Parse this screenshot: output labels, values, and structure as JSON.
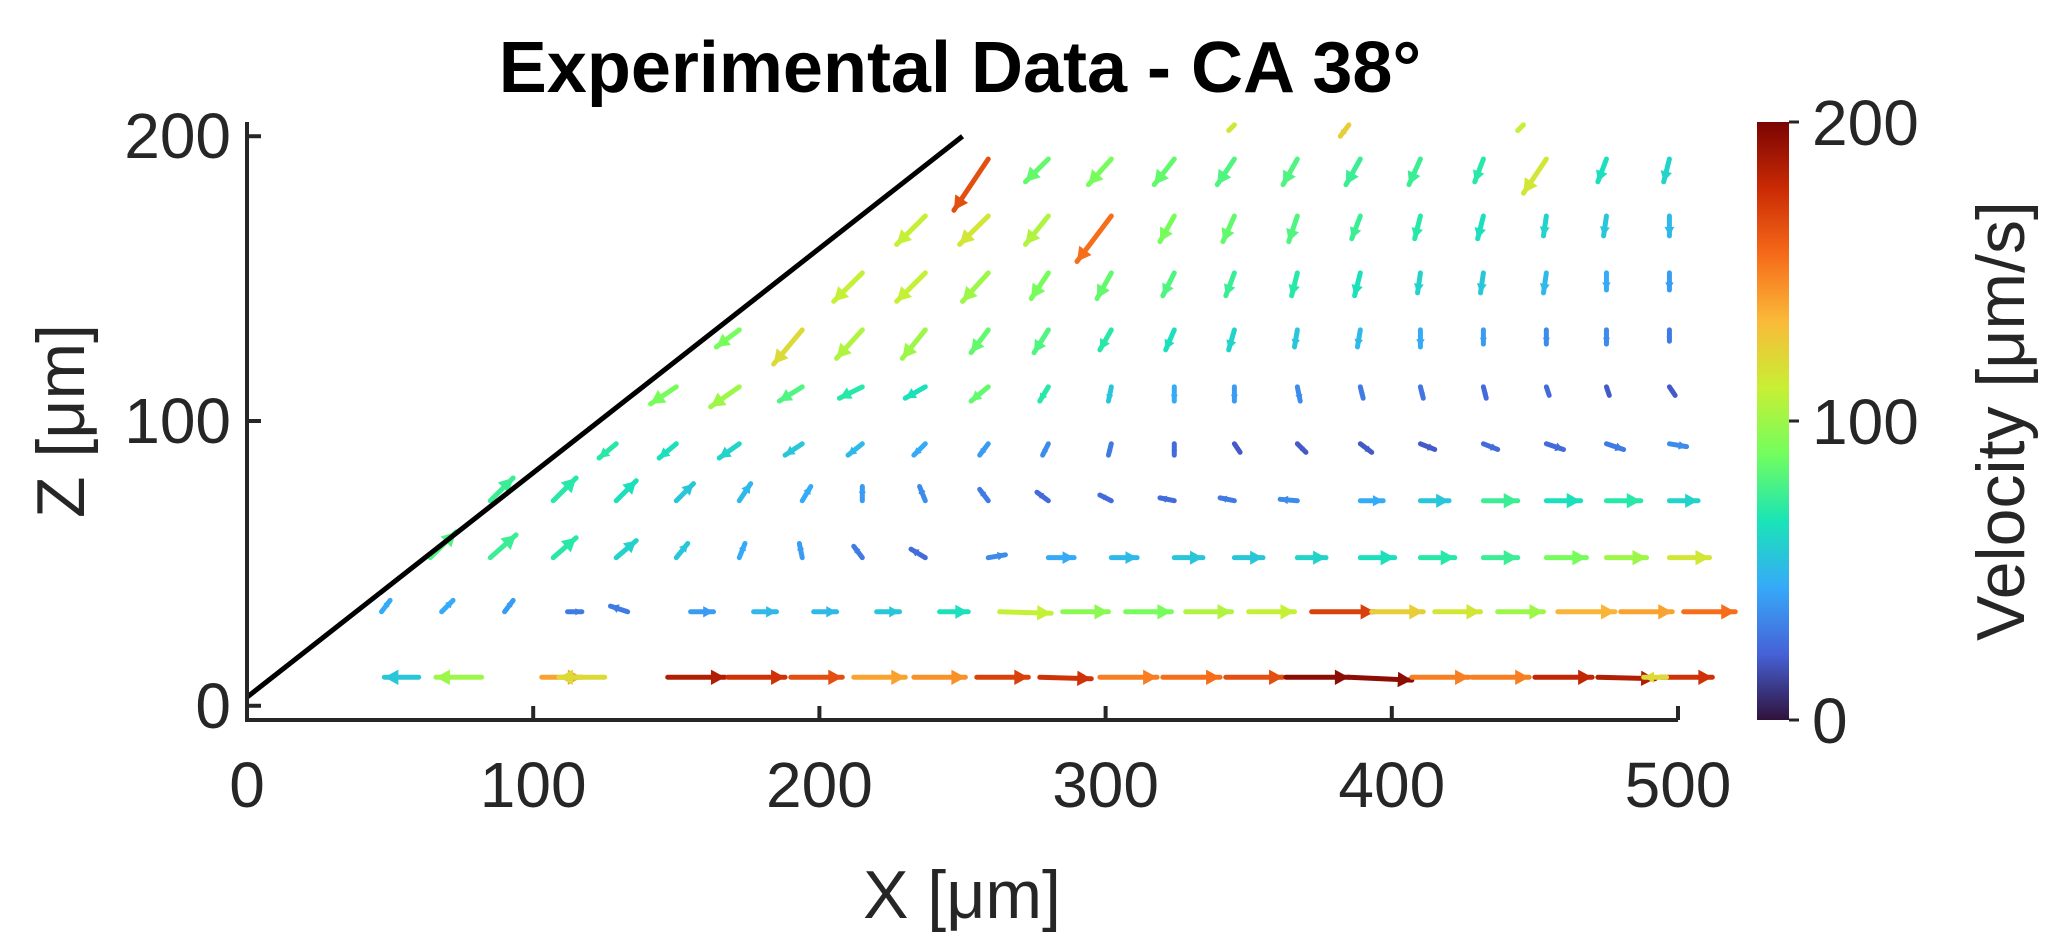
{
  "chart_data": {
    "type": "quiver",
    "title": "Experimental Data - CA 38°",
    "xlabel": "X [μm]",
    "ylabel": "Z [μm]",
    "xlim": [
      0,
      500
    ],
    "ylim": [
      -5,
      205
    ],
    "xticks": [
      "0",
      "100",
      "200",
      "300",
      "400",
      "500"
    ],
    "yticks": [
      "0",
      "100",
      "200"
    ],
    "xtick_values": [
      0,
      100,
      200,
      300,
      400,
      500
    ],
    "ytick_values": [
      0,
      100,
      200
    ],
    "wall_line": {
      "x": [
        0,
        250
      ],
      "z": [
        3,
        200
      ]
    },
    "colorbar": {
      "label": "Velocity [μm/s]",
      "ticks": [
        "0",
        "100",
        "200"
      ],
      "tick_values": [
        0,
        100,
        200
      ],
      "range": [
        0,
        200
      ],
      "colormap": [
        "#30123b",
        "#4662d7",
        "#36aaf9",
        "#1ae4b6",
        "#72fe5e",
        "#c8ef34",
        "#faba39",
        "#f66b19",
        "#ca2a04",
        "#7a0403"
      ]
    },
    "vectors": [
      {
        "x": 60,
        "z": 10,
        "u": -12,
        "v": 0,
        "s": 55
      },
      {
        "x": 82,
        "z": 10,
        "u": -16,
        "v": 0,
        "s": 100
      },
      {
        "x": 103,
        "z": 10,
        "u": 14,
        "v": 0,
        "s": 140
      },
      {
        "x": 125,
        "z": 10,
        "u": -16,
        "v": 0,
        "s": 120
      },
      {
        "x": 147,
        "z": 10,
        "u": 20,
        "v": 0,
        "s": 185
      },
      {
        "x": 168,
        "z": 10,
        "u": 20,
        "v": 0,
        "s": 175
      },
      {
        "x": 190,
        "z": 10,
        "u": 18,
        "v": 0,
        "s": 165
      },
      {
        "x": 212,
        "z": 10,
        "u": 18,
        "v": 0,
        "s": 140
      },
      {
        "x": 233,
        "z": 10,
        "u": 18,
        "v": 0,
        "s": 145
      },
      {
        "x": 255,
        "z": 10,
        "u": 18,
        "v": 0,
        "s": 170
      },
      {
        "x": 277,
        "z": 10,
        "u": 18,
        "v": -0.5,
        "s": 175
      },
      {
        "x": 298,
        "z": 10,
        "u": 20,
        "v": 0,
        "s": 150
      },
      {
        "x": 320,
        "z": 10,
        "u": 20,
        "v": 0,
        "s": 155
      },
      {
        "x": 342,
        "z": 10,
        "u": 20,
        "v": 0,
        "s": 165
      },
      {
        "x": 363,
        "z": 10,
        "u": 22,
        "v": 0,
        "s": 195
      },
      {
        "x": 385,
        "z": 10,
        "u": 22,
        "v": -1,
        "s": 195
      },
      {
        "x": 407,
        "z": 10,
        "u": 20,
        "v": 0,
        "s": 150
      },
      {
        "x": 428,
        "z": 10,
        "u": 20,
        "v": 0,
        "s": 150
      },
      {
        "x": 450,
        "z": 10,
        "u": 20,
        "v": 0,
        "s": 180
      },
      {
        "x": 472,
        "z": 10,
        "u": 20,
        "v": -0.5,
        "s": 185
      },
      {
        "x": 494,
        "z": 10,
        "u": 18,
        "v": 0,
        "s": 175
      },
      {
        "x": 496,
        "z": 10,
        "u": -8,
        "v": 0,
        "s": 120
      },
      {
        "x": 47,
        "z": 33,
        "u": 3,
        "v": 4,
        "s": 45
      },
      {
        "x": 68,
        "z": 33,
        "u": 4,
        "v": 4,
        "s": 45
      },
      {
        "x": 90,
        "z": 33,
        "u": 3,
        "v": 4,
        "s": 40
      },
      {
        "x": 112,
        "z": 33,
        "u": 5,
        "v": 0,
        "s": 30
      },
      {
        "x": 133,
        "z": 33,
        "u": -6,
        "v": 2,
        "s": 30
      },
      {
        "x": 155,
        "z": 33,
        "u": 8,
        "v": 0,
        "s": 40
      },
      {
        "x": 177,
        "z": 33,
        "u": 8,
        "v": 0,
        "s": 50
      },
      {
        "x": 198,
        "z": 33,
        "u": 8,
        "v": 0,
        "s": 50
      },
      {
        "x": 220,
        "z": 33,
        "u": 8,
        "v": 0,
        "s": 55
      },
      {
        "x": 242,
        "z": 33,
        "u": 10,
        "v": 0,
        "s": 65
      },
      {
        "x": 263,
        "z": 33,
        "u": 18,
        "v": -0.5,
        "s": 110
      },
      {
        "x": 285,
        "z": 33,
        "u": 16,
        "v": 0,
        "s": 95
      },
      {
        "x": 307,
        "z": 33,
        "u": 16,
        "v": 0,
        "s": 90
      },
      {
        "x": 328,
        "z": 33,
        "u": 16,
        "v": 0,
        "s": 105
      },
      {
        "x": 350,
        "z": 33,
        "u": 16,
        "v": 0,
        "s": 110
      },
      {
        "x": 372,
        "z": 33,
        "u": 22,
        "v": 0,
        "s": 170
      },
      {
        "x": 393,
        "z": 33,
        "u": 18,
        "v": 0,
        "s": 125
      },
      {
        "x": 415,
        "z": 33,
        "u": 16,
        "v": 0,
        "s": 115
      },
      {
        "x": 437,
        "z": 33,
        "u": 16,
        "v": 0,
        "s": 100
      },
      {
        "x": 458,
        "z": 33,
        "u": 20,
        "v": 0,
        "s": 135
      },
      {
        "x": 480,
        "z": 33,
        "u": 18,
        "v": 0,
        "s": 140
      },
      {
        "x": 502,
        "z": 33,
        "u": 18,
        "v": 0,
        "s": 155
      },
      {
        "x": 64,
        "z": 52,
        "u": 9,
        "v": 9,
        "s": 80
      },
      {
        "x": 85,
        "z": 52,
        "u": 9,
        "v": 8,
        "s": 75
      },
      {
        "x": 107,
        "z": 52,
        "u": 8,
        "v": 7,
        "s": 70
      },
      {
        "x": 129,
        "z": 52,
        "u": 7,
        "v": 6,
        "s": 60
      },
      {
        "x": 150,
        "z": 52,
        "u": 4,
        "v": 5,
        "s": 55
      },
      {
        "x": 172,
        "z": 52,
        "u": 2,
        "v": 5,
        "s": 45
      },
      {
        "x": 194,
        "z": 52,
        "u": -1,
        "v": 5,
        "s": 40
      },
      {
        "x": 215,
        "z": 52,
        "u": -3,
        "v": 4,
        "s": 30
      },
      {
        "x": 237,
        "z": 52,
        "u": -5,
        "v": 3,
        "s": 25
      },
      {
        "x": 259,
        "z": 52,
        "u": 6,
        "v": 1,
        "s": 35
      },
      {
        "x": 280,
        "z": 52,
        "u": 9,
        "v": 0,
        "s": 45
      },
      {
        "x": 302,
        "z": 52,
        "u": 9,
        "v": 0,
        "s": 50
      },
      {
        "x": 324,
        "z": 52,
        "u": 10,
        "v": 0,
        "s": 55
      },
      {
        "x": 345,
        "z": 52,
        "u": 10,
        "v": 0,
        "s": 55
      },
      {
        "x": 367,
        "z": 52,
        "u": 10,
        "v": 0,
        "s": 60
      },
      {
        "x": 389,
        "z": 52,
        "u": 12,
        "v": 0,
        "s": 65
      },
      {
        "x": 410,
        "z": 52,
        "u": 12,
        "v": 0,
        "s": 70
      },
      {
        "x": 432,
        "z": 52,
        "u": 12,
        "v": 0,
        "s": 75
      },
      {
        "x": 454,
        "z": 52,
        "u": 14,
        "v": 0,
        "s": 90
      },
      {
        "x": 475,
        "z": 52,
        "u": 14,
        "v": 0,
        "s": 100
      },
      {
        "x": 497,
        "z": 52,
        "u": 14,
        "v": 0,
        "s": 115
      },
      {
        "x": 85,
        "z": 72,
        "u": 8,
        "v": 8,
        "s": 75
      },
      {
        "x": 107,
        "z": 72,
        "u": 8,
        "v": 8,
        "s": 70
      },
      {
        "x": 129,
        "z": 72,
        "u": 7,
        "v": 7,
        "s": 65
      },
      {
        "x": 150,
        "z": 72,
        "u": 6,
        "v": 6,
        "s": 55
      },
      {
        "x": 172,
        "z": 72,
        "u": 4,
        "v": 6,
        "s": 50
      },
      {
        "x": 194,
        "z": 72,
        "u": 3,
        "v": 5,
        "s": 45
      },
      {
        "x": 215,
        "z": 72,
        "u": 0,
        "v": 5,
        "s": 40
      },
      {
        "x": 237,
        "z": 72,
        "u": -2,
        "v": 5,
        "s": 35
      },
      {
        "x": 259,
        "z": 72,
        "u": -3,
        "v": 4,
        "s": 30
      },
      {
        "x": 280,
        "z": 72,
        "u": -4,
        "v": 3,
        "s": 25
      },
      {
        "x": 302,
        "z": 72,
        "u": -4,
        "v": 2,
        "s": 25
      },
      {
        "x": 324,
        "z": 72,
        "u": -5,
        "v": 1,
        "s": 25
      },
      {
        "x": 345,
        "z": 72,
        "u": -5,
        "v": 1,
        "s": 30
      },
      {
        "x": 367,
        "z": 72,
        "u": -6,
        "v": 0.5,
        "s": 35
      },
      {
        "x": 389,
        "z": 72,
        "u": 8,
        "v": 0,
        "s": 45
      },
      {
        "x": 410,
        "z": 72,
        "u": 10,
        "v": 0,
        "s": 55
      },
      {
        "x": 432,
        "z": 72,
        "u": 12,
        "v": 0,
        "s": 75
      },
      {
        "x": 454,
        "z": 72,
        "u": 12,
        "v": 0,
        "s": 65
      },
      {
        "x": 475,
        "z": 72,
        "u": 12,
        "v": 0,
        "s": 70
      },
      {
        "x": 497,
        "z": 72,
        "u": 10,
        "v": 0,
        "s": 60
      },
      {
        "x": 129,
        "z": 92,
        "u": -6,
        "v": -5,
        "s": 70
      },
      {
        "x": 150,
        "z": 92,
        "u": -6,
        "v": -5,
        "s": 65
      },
      {
        "x": 172,
        "z": 92,
        "u": -7,
        "v": -5,
        "s": 60
      },
      {
        "x": 194,
        "z": 92,
        "u": -6,
        "v": -4,
        "s": 55
      },
      {
        "x": 215,
        "z": 92,
        "u": -5,
        "v": -4,
        "s": 50
      },
      {
        "x": 237,
        "z": 92,
        "u": -4,
        "v": -4,
        "s": 45
      },
      {
        "x": 259,
        "z": 92,
        "u": -3,
        "v": -4,
        "s": 40
      },
      {
        "x": 280,
        "z": 92,
        "u": -2,
        "v": -4,
        "s": 35
      },
      {
        "x": 302,
        "z": 92,
        "u": -1,
        "v": -4,
        "s": 30
      },
      {
        "x": 324,
        "z": 92,
        "u": 0,
        "v": -4,
        "s": 25
      },
      {
        "x": 345,
        "z": 92,
        "u": 2,
        "v": -3,
        "s": 20
      },
      {
        "x": 367,
        "z": 92,
        "u": 3,
        "v": -3,
        "s": 20
      },
      {
        "x": 389,
        "z": 92,
        "u": 4,
        "v": -3,
        "s": 20
      },
      {
        "x": 410,
        "z": 92,
        "u": 5,
        "v": -2,
        "s": 20
      },
      {
        "x": 432,
        "z": 92,
        "u": 5,
        "v": -2,
        "s": 25
      },
      {
        "x": 454,
        "z": 92,
        "u": 6,
        "v": -2,
        "s": 25
      },
      {
        "x": 475,
        "z": 92,
        "u": 6,
        "v": -2,
        "s": 30
      },
      {
        "x": 497,
        "z": 92,
        "u": 6,
        "v": -1,
        "s": 35
      },
      {
        "x": 150,
        "z": 112,
        "u": -9,
        "v": -6,
        "s": 90
      },
      {
        "x": 172,
        "z": 112,
        "u": -10,
        "v": -7,
        "s": 100
      },
      {
        "x": 194,
        "z": 112,
        "u": -8,
        "v": -5,
        "s": 80
      },
      {
        "x": 215,
        "z": 112,
        "u": -8,
        "v": -4,
        "s": 70
      },
      {
        "x": 237,
        "z": 112,
        "u": -7,
        "v": -4,
        "s": 65
      },
      {
        "x": 259,
        "z": 112,
        "u": -6,
        "v": -5,
        "s": 85
      },
      {
        "x": 280,
        "z": 112,
        "u": -3,
        "v": -5,
        "s": 70
      },
      {
        "x": 302,
        "z": 112,
        "u": -1,
        "v": -5,
        "s": 55
      },
      {
        "x": 324,
        "z": 112,
        "u": 0,
        "v": -5,
        "s": 45
      },
      {
        "x": 345,
        "z": 112,
        "u": 0,
        "v": -5,
        "s": 40
      },
      {
        "x": 367,
        "z": 112,
        "u": 1,
        "v": -5,
        "s": 35
      },
      {
        "x": 389,
        "z": 112,
        "u": 1,
        "v": -4,
        "s": 30
      },
      {
        "x": 410,
        "z": 112,
        "u": 1,
        "v": -4,
        "s": 28
      },
      {
        "x": 432,
        "z": 112,
        "u": 1,
        "v": -4,
        "s": 25
      },
      {
        "x": 454,
        "z": 112,
        "u": 1,
        "v": -3,
        "s": 25
      },
      {
        "x": 475,
        "z": 112,
        "u": 1,
        "v": -3,
        "s": 20
      },
      {
        "x": 497,
        "z": 112,
        "u": 2,
        "v": -3,
        "s": 20
      },
      {
        "x": 172,
        "z": 132,
        "u": -8,
        "v": -6,
        "s": 90
      },
      {
        "x": 194,
        "z": 132,
        "u": -10,
        "v": -12,
        "s": 120
      },
      {
        "x": 215,
        "z": 132,
        "u": -9,
        "v": -10,
        "s": 105
      },
      {
        "x": 237,
        "z": 132,
        "u": -8,
        "v": -10,
        "s": 100
      },
      {
        "x": 259,
        "z": 132,
        "u": -6,
        "v": -8,
        "s": 85
      },
      {
        "x": 280,
        "z": 132,
        "u": -5,
        "v": -8,
        "s": 80
      },
      {
        "x": 302,
        "z": 132,
        "u": -4,
        "v": -7,
        "s": 70
      },
      {
        "x": 324,
        "z": 132,
        "u": -3,
        "v": -7,
        "s": 65
      },
      {
        "x": 345,
        "z": 132,
        "u": -2,
        "v": -7,
        "s": 60
      },
      {
        "x": 367,
        "z": 132,
        "u": -1,
        "v": -6,
        "s": 55
      },
      {
        "x": 389,
        "z": 132,
        "u": -1,
        "v": -6,
        "s": 50
      },
      {
        "x": 410,
        "z": 132,
        "u": 0,
        "v": -6,
        "s": 45
      },
      {
        "x": 432,
        "z": 132,
        "u": 0,
        "v": -5,
        "s": 40
      },
      {
        "x": 454,
        "z": 132,
        "u": 0,
        "v": -5,
        "s": 35
      },
      {
        "x": 475,
        "z": 132,
        "u": 0,
        "v": -5,
        "s": 35
      },
      {
        "x": 497,
        "z": 132,
        "u": 0,
        "v": -4,
        "s": 30
      },
      {
        "x": 215,
        "z": 152,
        "u": -10,
        "v": -10,
        "s": 110
      },
      {
        "x": 237,
        "z": 152,
        "u": -10,
        "v": -10,
        "s": 110
      },
      {
        "x": 259,
        "z": 152,
        "u": -9,
        "v": -10,
        "s": 100
      },
      {
        "x": 280,
        "z": 152,
        "u": -6,
        "v": -9,
        "s": 90
      },
      {
        "x": 302,
        "z": 152,
        "u": -5,
        "v": -9,
        "s": 85
      },
      {
        "x": 324,
        "z": 152,
        "u": -4,
        "v": -8,
        "s": 80
      },
      {
        "x": 345,
        "z": 152,
        "u": -3,
        "v": -8,
        "s": 75
      },
      {
        "x": 367,
        "z": 152,
        "u": -2,
        "v": -8,
        "s": 70
      },
      {
        "x": 389,
        "z": 152,
        "u": -2,
        "v": -8,
        "s": 65
      },
      {
        "x": 410,
        "z": 152,
        "u": -1,
        "v": -7,
        "s": 60
      },
      {
        "x": 432,
        "z": 152,
        "u": -1,
        "v": -7,
        "s": 55
      },
      {
        "x": 454,
        "z": 152,
        "u": -1,
        "v": -7,
        "s": 50
      },
      {
        "x": 475,
        "z": 152,
        "u": 0,
        "v": -6,
        "s": 45
      },
      {
        "x": 497,
        "z": 152,
        "u": 0,
        "v": -6,
        "s": 40
      },
      {
        "x": 237,
        "z": 172,
        "u": -10,
        "v": -10,
        "s": 110
      },
      {
        "x": 259,
        "z": 172,
        "u": -10,
        "v": -10,
        "s": 115
      },
      {
        "x": 280,
        "z": 172,
        "u": -8,
        "v": -10,
        "s": 105
      },
      {
        "x": 302,
        "z": 172,
        "u": -12,
        "v": -16,
        "s": 155
      },
      {
        "x": 324,
        "z": 172,
        "u": -5,
        "v": -9,
        "s": 90
      },
      {
        "x": 345,
        "z": 172,
        "u": -4,
        "v": -9,
        "s": 85
      },
      {
        "x": 367,
        "z": 172,
        "u": -3,
        "v": -9,
        "s": 80
      },
      {
        "x": 389,
        "z": 172,
        "u": -3,
        "v": -8,
        "s": 75
      },
      {
        "x": 410,
        "z": 172,
        "u": -2,
        "v": -8,
        "s": 70
      },
      {
        "x": 432,
        "z": 172,
        "u": -2,
        "v": -8,
        "s": 65
      },
      {
        "x": 454,
        "z": 172,
        "u": -1,
        "v": -7,
        "s": 60
      },
      {
        "x": 475,
        "z": 172,
        "u": -1,
        "v": -7,
        "s": 55
      },
      {
        "x": 497,
        "z": 172,
        "u": 0,
        "v": -7,
        "s": 50
      },
      {
        "x": 259,
        "z": 192,
        "u": -12,
        "v": -18,
        "s": 165
      },
      {
        "x": 280,
        "z": 192,
        "u": -8,
        "v": -8,
        "s": 85
      },
      {
        "x": 302,
        "z": 192,
        "u": -8,
        "v": -9,
        "s": 90
      },
      {
        "x": 324,
        "z": 192,
        "u": -7,
        "v": -9,
        "s": 85
      },
      {
        "x": 345,
        "z": 192,
        "u": -6,
        "v": -9,
        "s": 80
      },
      {
        "x": 367,
        "z": 192,
        "u": -5,
        "v": -9,
        "s": 80
      },
      {
        "x": 389,
        "z": 192,
        "u": -5,
        "v": -9,
        "s": 75
      },
      {
        "x": 410,
        "z": 192,
        "u": -4,
        "v": -9,
        "s": 75
      },
      {
        "x": 432,
        "z": 192,
        "u": -3,
        "v": -8,
        "s": 70
      },
      {
        "x": 454,
        "z": 192,
        "u": -8,
        "v": -12,
        "s": 115
      },
      {
        "x": 475,
        "z": 192,
        "u": -3,
        "v": -8,
        "s": 65
      },
      {
        "x": 497,
        "z": 192,
        "u": -2,
        "v": -8,
        "s": 60
      },
      {
        "x": 345,
        "z": 204,
        "u": -2,
        "v": -2,
        "s": 115
      },
      {
        "x": 385,
        "z": 204,
        "u": -3,
        "v": -4,
        "s": 125
      },
      {
        "x": 446,
        "z": 204,
        "u": -2,
        "v": -2,
        "s": 110
      }
    ]
  }
}
